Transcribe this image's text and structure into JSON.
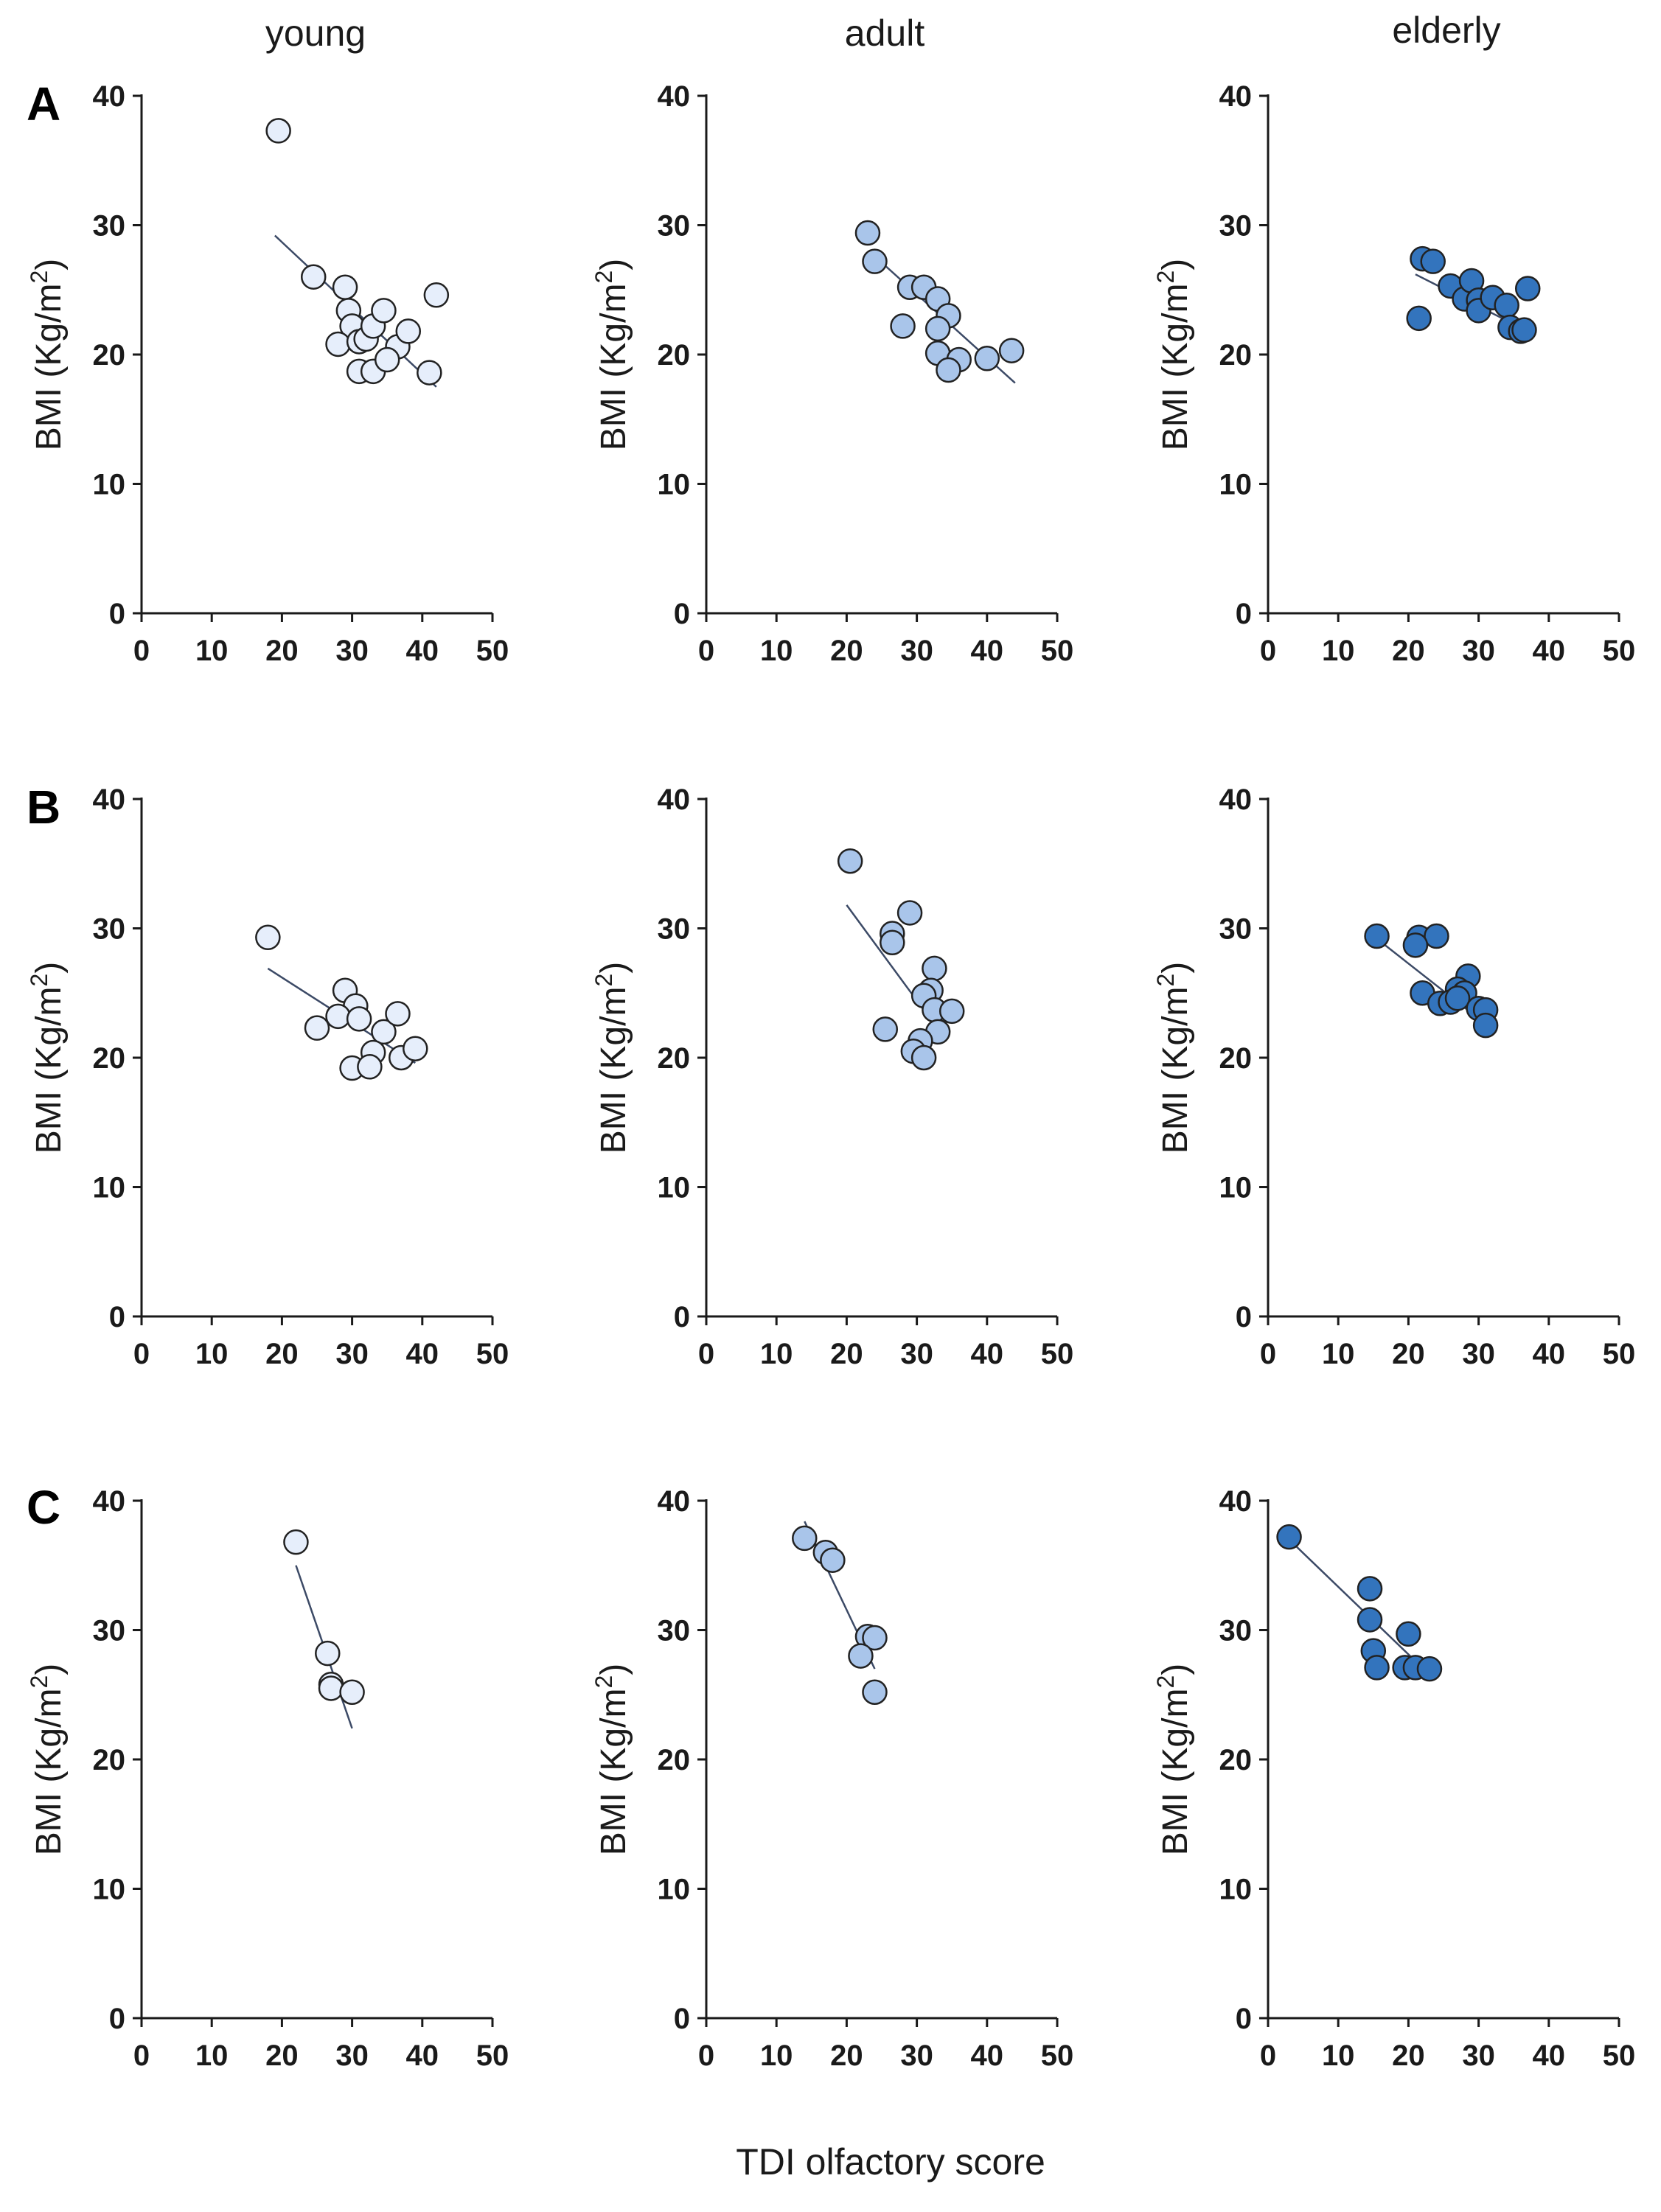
{
  "figure": {
    "column_titles": [
      "young",
      "adult",
      "elderly"
    ],
    "row_labels": [
      "A",
      "B",
      "C"
    ],
    "shared_xlabel": "TDI olfactory score",
    "ylabel_main": "BMI (Kg/m",
    "ylabel_sup": "2",
    "ylabel_close": ")",
    "colors": {
      "young": "#e6eefb",
      "adult": "#a9c5ea",
      "elderly": "#3374bd"
    }
  },
  "chart_data": [
    {
      "type": "scatter",
      "row": "A",
      "group": "young",
      "xlabel": "TDI olfactory score",
      "ylabel": "BMI (Kg/m2)",
      "xlim": [
        0,
        50
      ],
      "ylim": [
        0,
        40
      ],
      "xticks": [
        0,
        10,
        20,
        30,
        40,
        50
      ],
      "yticks": [
        0,
        10,
        20,
        30,
        40
      ],
      "points": [
        [
          19.5,
          37.3
        ],
        [
          24.5,
          26.0
        ],
        [
          29,
          25.2
        ],
        [
          29.5,
          23.4
        ],
        [
          30,
          22.2
        ],
        [
          28,
          20.8
        ],
        [
          31,
          21
        ],
        [
          32,
          21.2
        ],
        [
          33,
          22.2
        ],
        [
          34.5,
          23.4
        ],
        [
          36.5,
          20.6
        ],
        [
          31,
          18.7
        ],
        [
          33,
          18.7
        ],
        [
          35,
          19.6
        ],
        [
          38,
          21.8
        ],
        [
          41,
          18.6
        ],
        [
          42,
          24.6
        ]
      ],
      "fit": [
        [
          19,
          29.2
        ],
        [
          42,
          17.5
        ]
      ]
    },
    {
      "type": "scatter",
      "row": "A",
      "group": "adult",
      "xlabel": "TDI olfactory score",
      "ylabel": "BMI (Kg/m2)",
      "xlim": [
        0,
        50
      ],
      "ylim": [
        0,
        40
      ],
      "xticks": [
        0,
        10,
        20,
        30,
        40,
        50
      ],
      "yticks": [
        0,
        10,
        20,
        30,
        40
      ],
      "points": [
        [
          23,
          29.4
        ],
        [
          24,
          27.2
        ],
        [
          29,
          25.2
        ],
        [
          31,
          25.2
        ],
        [
          33,
          24.3
        ],
        [
          28,
          22.2
        ],
        [
          34.5,
          23
        ],
        [
          33,
          22
        ],
        [
          33,
          20.1
        ],
        [
          36,
          19.6
        ],
        [
          34.5,
          18.8
        ],
        [
          40,
          19.7
        ],
        [
          43.5,
          20.3
        ]
      ],
      "fit": [
        [
          24,
          27.6
        ],
        [
          44,
          17.8
        ]
      ]
    },
    {
      "type": "scatter",
      "row": "A",
      "group": "elderly",
      "xlabel": "TDI olfactory score",
      "ylabel": "BMI (Kg/m2)",
      "xlim": [
        0,
        50
      ],
      "ylim": [
        0,
        40
      ],
      "xticks": [
        0,
        10,
        20,
        30,
        40,
        50
      ],
      "yticks": [
        0,
        10,
        20,
        30,
        40
      ],
      "points": [
        [
          22,
          27.4
        ],
        [
          23.5,
          27.2
        ],
        [
          26,
          25.3
        ],
        [
          28,
          24.3
        ],
        [
          29,
          25.7
        ],
        [
          30,
          24.2
        ],
        [
          30,
          23.4
        ],
        [
          32,
          24.4
        ],
        [
          34,
          23.8
        ],
        [
          34.5,
          22.1
        ],
        [
          36,
          21.8
        ],
        [
          36.5,
          21.9
        ],
        [
          37,
          25.1
        ],
        [
          21.5,
          22.8
        ]
      ],
      "fit": [
        [
          21,
          26.2
        ],
        [
          37,
          21.8
        ]
      ]
    },
    {
      "type": "scatter",
      "row": "B",
      "group": "young",
      "xlabel": "TDI olfactory score",
      "ylabel": "BMI (Kg/m2)",
      "xlim": [
        0,
        50
      ],
      "ylim": [
        0,
        40
      ],
      "xticks": [
        0,
        10,
        20,
        30,
        40,
        50
      ],
      "yticks": [
        0,
        10,
        20,
        30,
        40
      ],
      "points": [
        [
          18,
          29.3
        ],
        [
          29,
          25.2
        ],
        [
          30.5,
          24
        ],
        [
          28,
          23.2
        ],
        [
          31,
          23
        ],
        [
          25,
          22.3
        ],
        [
          34.5,
          22
        ],
        [
          36.5,
          23.4
        ],
        [
          33,
          20.4
        ],
        [
          30,
          19.2
        ],
        [
          32.5,
          19.3
        ],
        [
          37,
          20
        ],
        [
          39,
          20.7
        ]
      ],
      "fit": [
        [
          18,
          26.9
        ],
        [
          39,
          19.6
        ]
      ]
    },
    {
      "type": "scatter",
      "row": "B",
      "group": "adult",
      "xlabel": "TDI olfactory score",
      "ylabel": "BMI (Kg/m2)",
      "xlim": [
        0,
        50
      ],
      "ylim": [
        0,
        40
      ],
      "xticks": [
        0,
        10,
        20,
        30,
        40,
        50
      ],
      "yticks": [
        0,
        10,
        20,
        30,
        40
      ],
      "points": [
        [
          20.5,
          35.2
        ],
        [
          29,
          31.2
        ],
        [
          26.5,
          29.6
        ],
        [
          26.5,
          28.9
        ],
        [
          32.5,
          26.9
        ],
        [
          32,
          25.2
        ],
        [
          31,
          24.8
        ],
        [
          32.5,
          23.7
        ],
        [
          35,
          23.6
        ],
        [
          25.5,
          22.2
        ],
        [
          33,
          22
        ],
        [
          30.5,
          21.3
        ],
        [
          29.5,
          20.5
        ],
        [
          31,
          20
        ]
      ],
      "fit": [
        [
          20,
          31.8
        ],
        [
          33,
          22.2
        ]
      ]
    },
    {
      "type": "scatter",
      "row": "B",
      "group": "elderly",
      "xlabel": "TDI olfactory score",
      "ylabel": "BMI (Kg/m2)",
      "xlim": [
        0,
        50
      ],
      "ylim": [
        0,
        40
      ],
      "xticks": [
        0,
        10,
        20,
        30,
        40,
        50
      ],
      "yticks": [
        0,
        10,
        20,
        30,
        40
      ],
      "points": [
        [
          15.5,
          29.4
        ],
        [
          21.5,
          29.3
        ],
        [
          24,
          29.4
        ],
        [
          21,
          28.7
        ],
        [
          28.5,
          26.3
        ],
        [
          27,
          25.3
        ],
        [
          28,
          25
        ],
        [
          22,
          25
        ],
        [
          24.5,
          24.2
        ],
        [
          26,
          24.3
        ],
        [
          27,
          24.6
        ],
        [
          30,
          23.8
        ],
        [
          31,
          23.7
        ],
        [
          31,
          22.5
        ]
      ],
      "fit": [
        [
          15.5,
          29.2
        ],
        [
          31,
          22.6
        ]
      ]
    },
    {
      "type": "scatter",
      "row": "C",
      "group": "young",
      "xlabel": "TDI olfactory score",
      "ylabel": "BMI (Kg/m2)",
      "xlim": [
        0,
        50
      ],
      "ylim": [
        0,
        40
      ],
      "xticks": [
        0,
        10,
        20,
        30,
        40,
        50
      ],
      "yticks": [
        0,
        10,
        20,
        30,
        40
      ],
      "points": [
        [
          22,
          36.8
        ],
        [
          26.5,
          28.2
        ],
        [
          27,
          25.8
        ],
        [
          27,
          25.5
        ],
        [
          30,
          25.2
        ]
      ],
      "fit": [
        [
          22,
          35
        ],
        [
          30,
          22.4
        ]
      ]
    },
    {
      "type": "scatter",
      "row": "C",
      "group": "adult",
      "xlabel": "TDI olfactory score",
      "ylabel": "BMI (Kg/m2)",
      "xlim": [
        0,
        50
      ],
      "ylim": [
        0,
        40
      ],
      "xticks": [
        0,
        10,
        20,
        30,
        40,
        50
      ],
      "yticks": [
        0,
        10,
        20,
        30,
        40
      ],
      "points": [
        [
          14,
          37.1
        ],
        [
          17,
          36
        ],
        [
          18,
          35.4
        ],
        [
          23,
          29.5
        ],
        [
          24,
          29.4
        ],
        [
          22,
          28
        ],
        [
          24,
          25.2
        ]
      ],
      "fit": [
        [
          14,
          38.4
        ],
        [
          24,
          27
        ]
      ]
    },
    {
      "type": "scatter",
      "row": "C",
      "group": "elderly",
      "xlabel": "TDI olfactory score",
      "ylabel": "BMI (Kg/m2)",
      "xlim": [
        0,
        50
      ],
      "ylim": [
        0,
        40
      ],
      "xticks": [
        0,
        10,
        20,
        30,
        40,
        50
      ],
      "yticks": [
        0,
        10,
        20,
        30,
        40
      ],
      "points": [
        [
          3,
          37.2
        ],
        [
          14.5,
          33.2
        ],
        [
          14.5,
          30.8
        ],
        [
          15,
          28.4
        ],
        [
          20,
          29.7
        ],
        [
          15.5,
          27.1
        ],
        [
          19.5,
          27.1
        ],
        [
          21,
          27.1
        ],
        [
          23,
          27
        ]
      ],
      "fit": [
        [
          3,
          37
        ],
        [
          21,
          27.6
        ]
      ]
    }
  ]
}
